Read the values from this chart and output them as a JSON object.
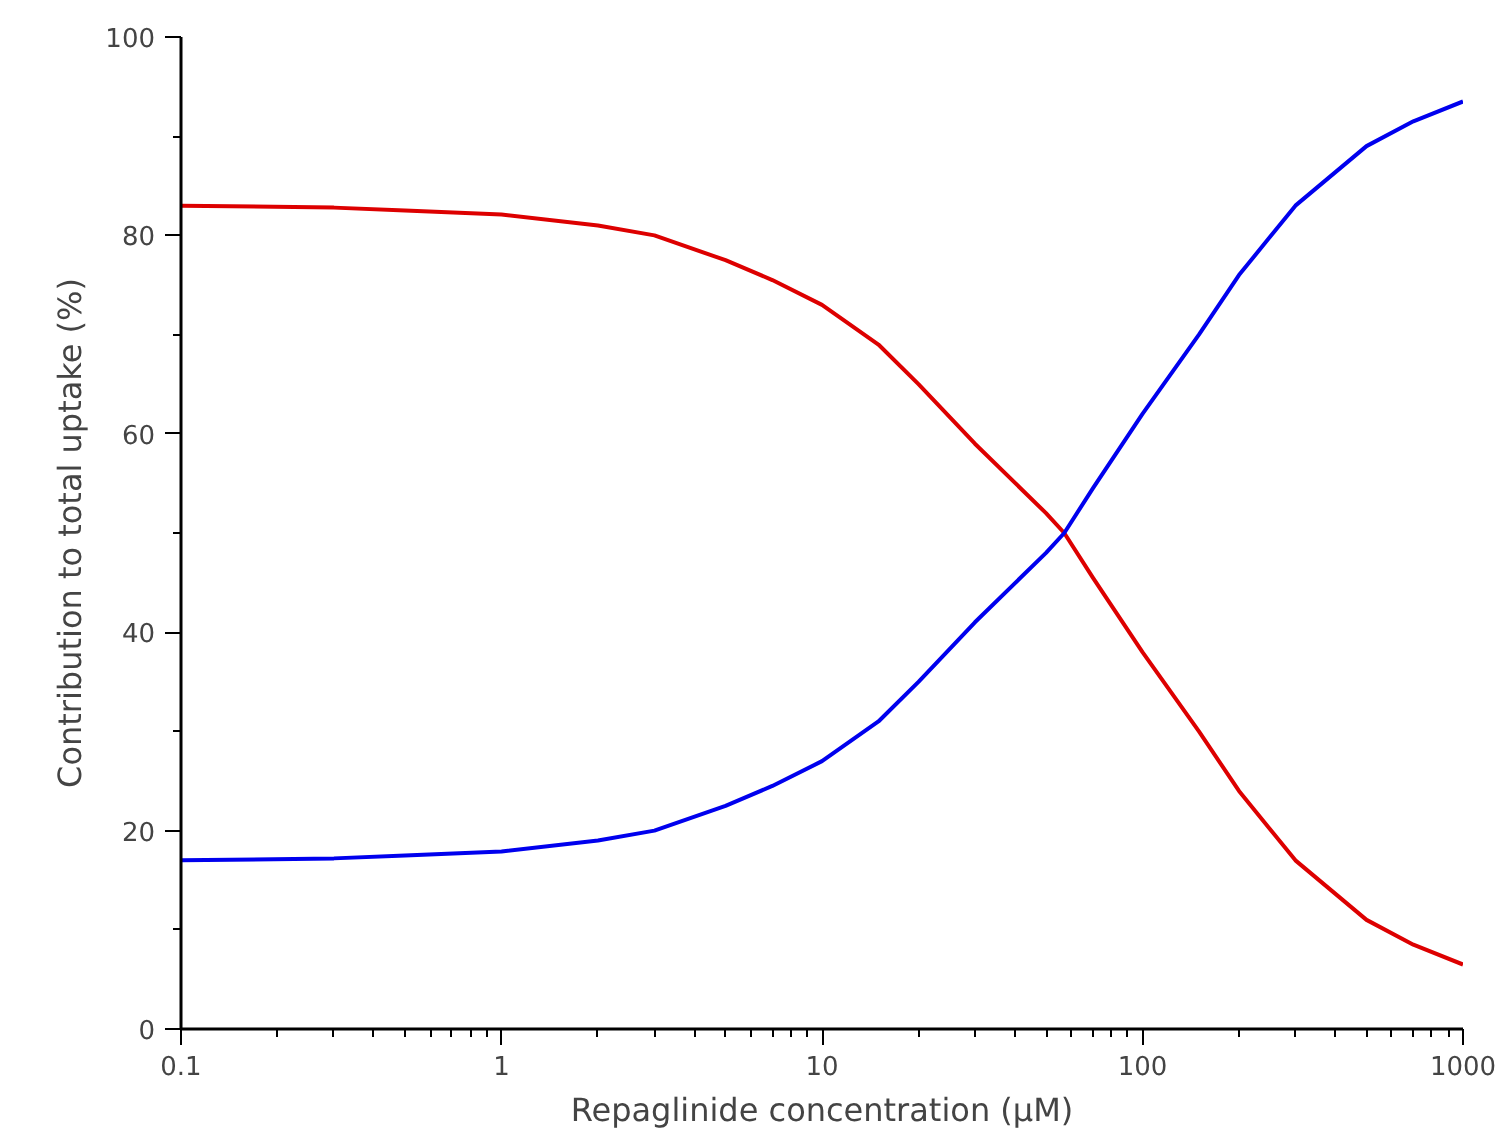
{
  "chart_data": {
    "type": "line",
    "xlabel": "Repaglinide concentration (µM)",
    "ylabel": "Contribution to total uptake (%)",
    "log": "x",
    "x": [
      0.1,
      0.3,
      0.5,
      1,
      2,
      3,
      5,
      7,
      10,
      15,
      20,
      30,
      50,
      57,
      70,
      100,
      150,
      200,
      300,
      500,
      700,
      1000
    ],
    "series": [
      {
        "color": "#dd0000",
        "values": [
          83,
          82.8,
          82.5,
          82.1,
          81,
          80,
          77.5,
          75.5,
          73,
          69,
          65,
          59,
          52,
          50,
          45.5,
          38,
          30,
          24,
          17,
          11,
          8.5,
          6.5
        ]
      },
      {
        "color": "#0000ee",
        "values": [
          17,
          17.2,
          17.5,
          17.9,
          19,
          20,
          22.5,
          24.5,
          27,
          31,
          35,
          41,
          48,
          50,
          54.5,
          62,
          70,
          76,
          83,
          89,
          91.5,
          93.5
        ]
      }
    ],
    "xlim": [
      0.1,
      1000
    ],
    "ylim": [
      0,
      100
    ],
    "xticks": [
      0.1,
      {
        "value": 0.2,
        "label": null
      },
      {
        "value": 0.3,
        "label": null
      },
      {
        "value": 0.4,
        "label": null
      },
      {
        "value": 0.5,
        "label": null
      },
      {
        "value": 0.6,
        "label": null
      },
      {
        "value": 0.7,
        "label": null
      },
      {
        "value": 0.8,
        "label": null
      },
      {
        "value": 0.9,
        "label": null
      },
      1,
      {
        "value": 2,
        "label": null
      },
      {
        "value": 3,
        "label": null
      },
      {
        "value": 4,
        "label": null
      },
      {
        "value": 5,
        "label": null
      },
      {
        "value": 6,
        "label": null
      },
      {
        "value": 7,
        "label": null
      },
      {
        "value": 8,
        "label": null
      },
      {
        "value": 9,
        "label": null
      },
      10,
      {
        "value": 20,
        "label": null
      },
      {
        "value": 30,
        "label": null
      },
      {
        "value": 40,
        "label": null
      },
      {
        "value": 50,
        "label": null
      },
      {
        "value": 60,
        "label": null
      },
      {
        "value": 70,
        "label": null
      },
      {
        "value": 80,
        "label": null
      },
      {
        "value": 90,
        "label": null
      },
      100,
      {
        "value": 200,
        "label": null
      },
      {
        "value": 300,
        "label": null
      },
      {
        "value": 400,
        "label": null
      },
      {
        "value": 500,
        "label": null
      },
      {
        "value": 600,
        "label": null
      },
      {
        "value": 700,
        "label": null
      },
      {
        "value": 800,
        "label": null
      },
      {
        "value": 900,
        "label": null
      },
      1000
    ],
    "yticks": [
      0,
      {
        "value": 10,
        "label": null
      },
      20,
      {
        "value": 30,
        "label": null
      },
      40,
      {
        "value": 50,
        "label": null
      },
      60,
      {
        "value": 70,
        "label": null
      },
      80,
      {
        "value": 90,
        "label": null
      },
      100
    ],
    "marker": "none",
    "line_style": "solid"
  }
}
